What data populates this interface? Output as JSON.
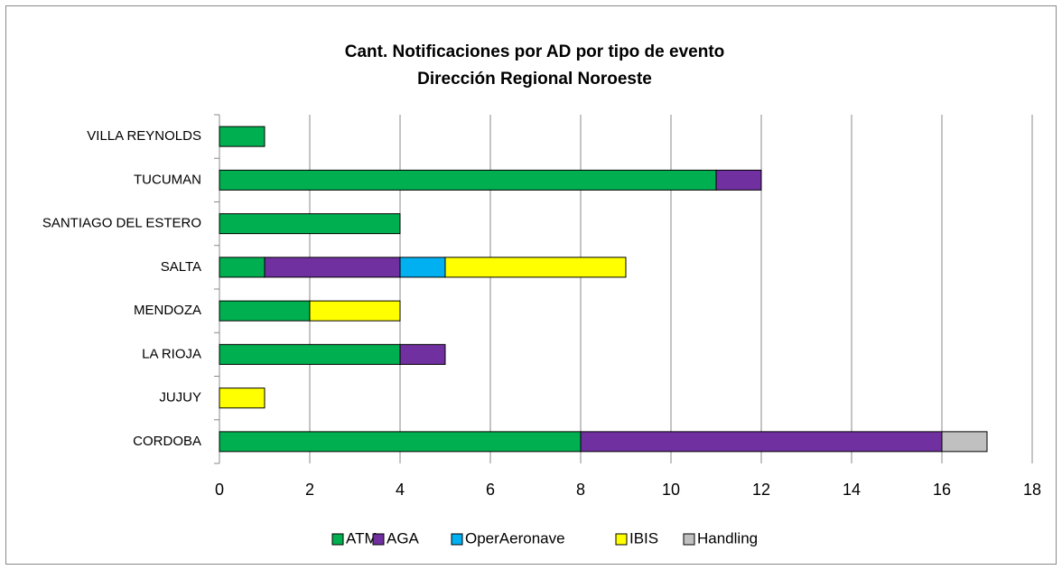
{
  "chart_data": {
    "type": "bar",
    "orientation": "horizontal",
    "stacked": true,
    "title": [
      "Cant. Notificaciones por AD por tipo de evento",
      "Dirección Regional Noroeste"
    ],
    "categories": [
      "CORDOBA",
      "JUJUY",
      "LA RIOJA",
      "MENDOZA",
      "SALTA",
      "SANTIAGO DEL ESTERO",
      "TUCUMAN",
      "VILLA REYNOLDS"
    ],
    "series": [
      {
        "name": "ATM",
        "color": "#00b050",
        "values": [
          8,
          0,
          4,
          2,
          1,
          4,
          11,
          1
        ]
      },
      {
        "name": "AGA",
        "color": "#7030a0",
        "values": [
          8,
          0,
          1,
          0,
          3,
          0,
          1,
          0
        ]
      },
      {
        "name": "OperAeronave",
        "color": "#00b0f0",
        "values": [
          0,
          0,
          0,
          0,
          1,
          0,
          0,
          0
        ]
      },
      {
        "name": "IBIS",
        "color": "#ffff00",
        "values": [
          0,
          1,
          0,
          2,
          4,
          0,
          0,
          0
        ]
      },
      {
        "name": "Handling",
        "color": "#c0c0c0",
        "values": [
          1,
          0,
          0,
          0,
          0,
          0,
          0,
          0
        ]
      }
    ],
    "xlim": [
      0,
      18
    ],
    "xticks": [
      0,
      2,
      4,
      6,
      8,
      10,
      12,
      14,
      16,
      18
    ],
    "grid": true,
    "legend": "bottom"
  }
}
